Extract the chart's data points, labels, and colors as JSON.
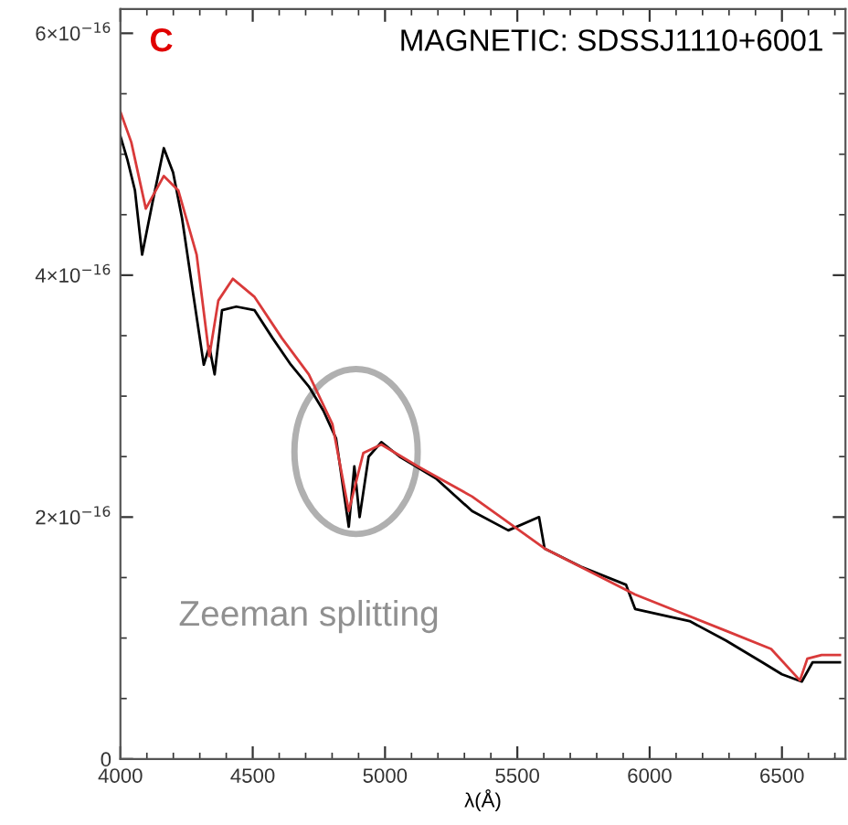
{
  "chart_data": {
    "type": "line",
    "title": "MAGNETIC: SDSSJ1110+6001",
    "xlabel": "λ(Å)",
    "annotations": [
      "C",
      "Zeeman splitting"
    ],
    "series": [
      {
        "color": "#000000",
        "x": [
          4000,
          4027,
          4055,
          4082,
          4123,
          4164,
          4199,
          4233,
          4274,
          4315,
          4336,
          4356,
          4384,
          4438,
          4507,
          4575,
          4644,
          4712,
          4767,
          4815,
          4863,
          4884,
          4904,
          4938,
          4986,
          5055,
          5192,
          5329,
          5466,
          5582,
          5603,
          5740,
          5911,
          5945,
          6151,
          6288,
          6425,
          6500,
          6575,
          6616,
          6719
        ],
        "values": [
          5.15e-16,
          4.95e-16,
          4.7e-16,
          4.17e-16,
          4.62e-16,
          5.05e-16,
          4.85e-16,
          4.47e-16,
          3.86e-16,
          3.26e-16,
          3.41e-16,
          3.18e-16,
          3.71e-16,
          3.74e-16,
          3.71e-16,
          3.48e-16,
          3.26e-16,
          3.08e-16,
          2.88e-16,
          2.65e-16,
          1.92e-16,
          2.42e-16,
          2e-16,
          2.5e-16,
          2.62e-16,
          2.5e-16,
          2.32e-16,
          2.05e-16,
          1.89e-16,
          2e-16,
          1.74e-16,
          1.59e-16,
          1.44e-16,
          1.24e-16,
          1.14e-16,
          9.8e-17,
          8e-17,
          7e-17,
          6.4e-17,
          8e-17,
          8e-17
        ]
      },
      {
        "color": "#d93a3a",
        "x": [
          4000,
          4041,
          4096,
          4164,
          4219,
          4288,
          4336,
          4370,
          4425,
          4507,
          4610,
          4712,
          4801,
          4863,
          4918,
          4986,
          5123,
          5329,
          5603,
          5945,
          6288,
          6459,
          6568,
          6596,
          6650,
          6719
        ],
        "values": [
          5.35e-16,
          5.1e-16,
          4.55e-16,
          4.82e-16,
          4.7e-16,
          4.17e-16,
          3.33e-16,
          3.79e-16,
          3.97e-16,
          3.82e-16,
          3.48e-16,
          3.18e-16,
          2.77e-16,
          2.05e-16,
          2.53e-16,
          2.6e-16,
          2.42e-16,
          2.17e-16,
          1.74e-16,
          1.36e-16,
          1.06e-16,
          9.1e-17,
          6.5e-17,
          8.3e-17,
          8.6e-17,
          8.6e-17
        ]
      }
    ],
    "xlim": [
      4000,
      6740
    ],
    "ylim": [
      0,
      6.2e-16
    ],
    "xticks": [
      4000,
      4500,
      5000,
      5500,
      6000,
      6500
    ],
    "yticks": [
      0,
      {
        "value": 2e-16,
        "label": "2×10$^{−16}$"
      },
      {
        "value": 4e-16,
        "label": "4×10$^{−16}$"
      },
      {
        "value": 6e-16,
        "label": "6×10$^{−16}$"
      }
    ],
    "grid": false,
    "legend": false,
    "marker": "none",
    "line_style": "solid"
  }
}
